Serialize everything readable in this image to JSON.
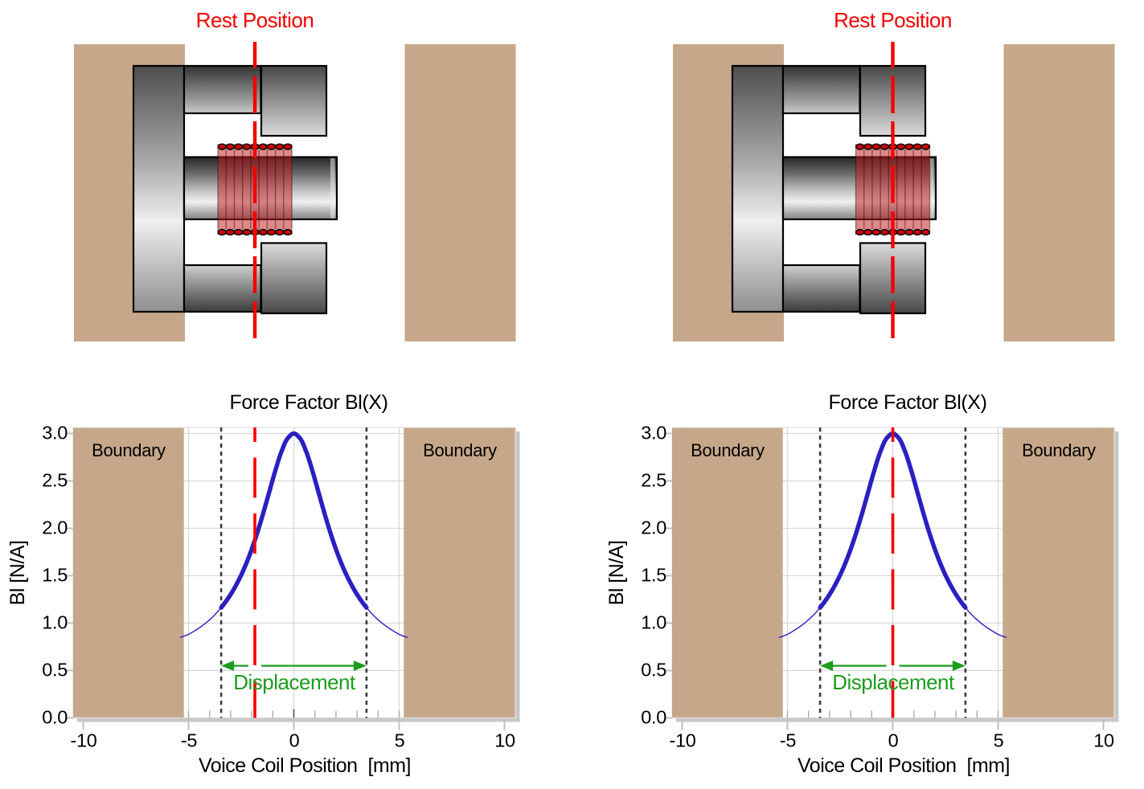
{
  "figure": {
    "background": "#FFFFFF",
    "description": "Loudspeaker motor cross-section with voice coil rest position and force factor Bl(X) curve; left panel shows a coil offset toward the back plate, right panel shows a centered coil."
  },
  "colors": {
    "boundary_tan": "#C6A789",
    "rest_red": "#F40000",
    "curve_blue": "#2B1FC2",
    "annotation_green": "#1E9C1E",
    "gridline_gray": "#D9D9D9",
    "dotted_line_gray": "#3C3C3C",
    "plot_shadow_gray": "#C7C7C7",
    "metal_outline": "#000000",
    "metal_dark": "#333333",
    "metal_light": "#F1F1F1",
    "coil_fill_red": "#BE1E1E",
    "coil_turn_dark_red": "#3C0000",
    "coil_dot_red": "#CC0000",
    "text_black": "#000000"
  },
  "panels": [
    {
      "side": "left",
      "rest_position_label": "Rest Position",
      "coil_offset_mm": -1.85
    },
    {
      "side": "right",
      "rest_position_label": "Rest Position",
      "coil_offset_mm": 0
    }
  ],
  "chart_data": [
    {
      "type": "line",
      "title": "Force Factor Bl(X)",
      "xlabel": "Voice Coil Position  [mm]",
      "ylabel": "Bl [N/A]",
      "xlim": [
        -10.5,
        10.5
      ],
      "ylim": [
        0,
        3.05
      ],
      "grid": true,
      "x_ticks": [
        -10,
        -5,
        0,
        5,
        10
      ],
      "x_tick_labels": [
        "-10",
        "-5",
        "0",
        "5",
        "10"
      ],
      "y_ticks": [
        0,
        0.5,
        1,
        1.5,
        2,
        2.5,
        3
      ],
      "y_tick_labels": [
        "0.0",
        "0.5",
        "1.0",
        "1.5",
        "2.0",
        "2.5",
        "3.0"
      ],
      "boundaries": {
        "label": "Boundary",
        "regions_mm": [
          [
            -10.5,
            -5.22
          ],
          [
            5.22,
            10.5
          ]
        ]
      },
      "dotted_limit_lines_mm": [
        -3.45,
        3.45
      ],
      "rest_position_mm": -1.85,
      "displacement": {
        "label": "Displacement",
        "from_mm": -3.45,
        "to_mm": 3.45,
        "arrow_y": 0.55
      },
      "thick_range_mm": [
        -3.45,
        3.45
      ],
      "series": [
        {
          "name": "Bl",
          "x": [
            -5.4,
            -5.05,
            -4.7,
            -4.35,
            -4.0,
            -3.7,
            -3.45,
            -3.2,
            -3.0,
            -2.7,
            -2.4,
            -2.1,
            -1.8,
            -1.5,
            -1.2,
            -0.9,
            -0.6,
            -0.3,
            0,
            0.3,
            0.6,
            0.9,
            1.2,
            1.5,
            1.8,
            2.1,
            2.4,
            2.7,
            3.0,
            3.2,
            3.45,
            3.7,
            4.0,
            4.35,
            4.7,
            5.05,
            5.4
          ],
          "y": [
            0.848,
            0.876,
            0.92,
            0.972,
            1.035,
            1.1,
            1.163,
            1.236,
            1.302,
            1.418,
            1.555,
            1.718,
            1.908,
            2.124,
            2.357,
            2.592,
            2.801,
            2.947,
            3.0,
            2.947,
            2.801,
            2.592,
            2.357,
            2.124,
            1.908,
            1.718,
            1.555,
            1.418,
            1.302,
            1.236,
            1.163,
            1.1,
            1.035,
            0.972,
            0.92,
            0.876,
            0.848
          ]
        }
      ]
    },
    {
      "type": "line",
      "title": "Force Factor Bl(X)",
      "xlabel": "Voice Coil Position  [mm]",
      "ylabel": "Bl [N/A]",
      "xlim": [
        -10.5,
        10.5
      ],
      "ylim": [
        0,
        3.05
      ],
      "grid": true,
      "x_ticks": [
        -10,
        -5,
        0,
        5,
        10
      ],
      "x_tick_labels": [
        "-10",
        "-5",
        "0",
        "5",
        "10"
      ],
      "y_ticks": [
        0,
        0.5,
        1,
        1.5,
        2,
        2.5,
        3
      ],
      "y_tick_labels": [
        "0.0",
        "0.5",
        "1.0",
        "1.5",
        "2.0",
        "2.5",
        "3.0"
      ],
      "boundaries": {
        "label": "Boundary",
        "regions_mm": [
          [
            -10.5,
            -5.22
          ],
          [
            5.22,
            10.5
          ]
        ]
      },
      "dotted_limit_lines_mm": [
        -3.45,
        3.45
      ],
      "rest_position_mm": 0,
      "displacement": {
        "label": "Displacement",
        "from_mm": -3.45,
        "to_mm": 3.45,
        "arrow_y": 0.55
      },
      "thick_range_mm": [
        -3.45,
        3.45
      ],
      "series": [
        {
          "name": "Bl",
          "x": [
            -5.4,
            -5.05,
            -4.7,
            -4.35,
            -4.0,
            -3.7,
            -3.45,
            -3.2,
            -3.0,
            -2.7,
            -2.4,
            -2.1,
            -1.8,
            -1.5,
            -1.2,
            -0.9,
            -0.6,
            -0.3,
            0,
            0.3,
            0.6,
            0.9,
            1.2,
            1.5,
            1.8,
            2.1,
            2.4,
            2.7,
            3.0,
            3.2,
            3.45,
            3.7,
            4.0,
            4.35,
            4.7,
            5.05,
            5.4
          ],
          "y": [
            0.848,
            0.876,
            0.92,
            0.972,
            1.035,
            1.1,
            1.163,
            1.236,
            1.302,
            1.418,
            1.555,
            1.718,
            1.908,
            2.124,
            2.357,
            2.592,
            2.801,
            2.947,
            3.0,
            2.947,
            2.801,
            2.592,
            2.357,
            2.124,
            1.908,
            1.718,
            1.555,
            1.418,
            1.302,
            1.236,
            1.163,
            1.1,
            1.035,
            0.972,
            0.92,
            0.876,
            0.848
          ]
        }
      ]
    }
  ]
}
